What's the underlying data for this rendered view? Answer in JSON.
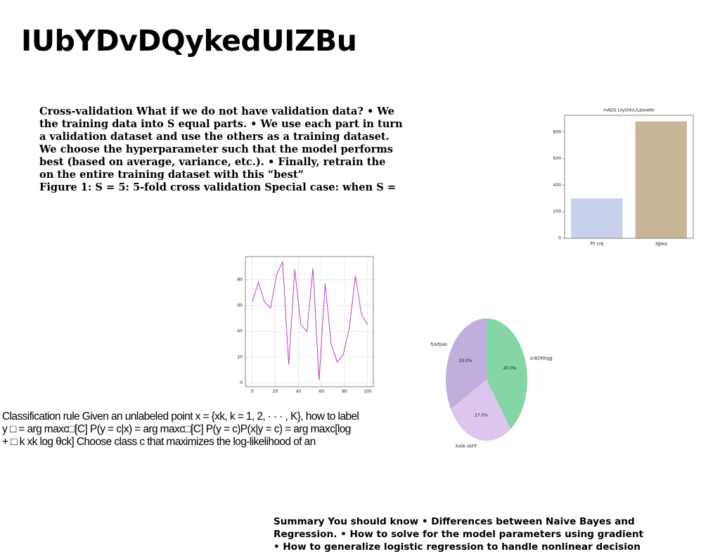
{
  "title": "IUbYDvDQykedUIZBu",
  "paragraphs": [
    {
      "lines": [
        "Cross-validation What if we do not have validation data? • We",
        "the training data into S equal parts. • We use each part in turn",
        "a validation dataset and use the others as a training dataset.",
        "We choose the hyperparameter such that the model performs",
        "best (based on average, variance, etc.). • Finally, retrain the",
        "on the entire training dataset with this “best”",
        "Figure 1: S = 5: 5-fold cross validation Special case: when S ="
      ]
    },
    {
      "lines": [
        "Classification rule Given an unlabeled point x = {xk, k = 1, 2, · · · , K}, how to label",
        "y □ = arg maxc□[C] P(y = c|x) = arg maxc□[C] P(y = c)P(x|y = c) = arg maxc[log",
        "+ □ k xk log θck] Choose class c that maximizes the log-likelihood of an"
      ]
    },
    {
      "lines": [
        "Summary You should know • Differences between Naive Bayes and",
        "Regression. • How to solve for the model parameters using gradient",
        "• How to generalize logistic regression to handle nonlinear decision"
      ]
    }
  ],
  "chart_data": [
    {
      "type": "bar",
      "title": "mADS LoyOdvLlLptxwNr",
      "categories": [
        "PS LHJ",
        "bJJwq"
      ],
      "values": [
        300,
        880
      ],
      "colors": [
        "#c8d1ec",
        "#c9b696"
      ],
      "ylim": [
        0,
        926
      ],
      "yticks": [
        0,
        200,
        400,
        600,
        800
      ]
    },
    {
      "type": "line",
      "x": [
        0,
        5.3,
        10.5,
        15.8,
        21.1,
        26.3,
        31.6,
        36.8,
        42.1,
        47.4,
        52.6,
        57.9,
        63.2,
        68.4,
        73.7,
        78.9,
        84.2,
        89.5,
        94.7,
        100
      ],
      "values": [
        63,
        78,
        63,
        58,
        84,
        94,
        14,
        88,
        45,
        40,
        89,
        2,
        77,
        30,
        16,
        22,
        43,
        83,
        53,
        45
      ],
      "color": "#c43cc4",
      "xlim": [
        -6,
        105
      ],
      "ylim": [
        -3,
        98
      ],
      "xticks": [
        0,
        20,
        40,
        60,
        80,
        100
      ],
      "yticks": [
        0,
        20,
        40,
        60,
        80
      ],
      "grid": true
    },
    {
      "type": "pie",
      "categories": [
        "zcBZKKqgJ",
        "Xxbk skFP",
        "fUVfpVo"
      ],
      "values": [
        40,
        27,
        33
      ],
      "value_labels": [
        "40.0%",
        "27.0%",
        "33.0%"
      ],
      "colors": [
        "#84d6a4",
        "#dcc6ee",
        "#c0aedc"
      ]
    }
  ]
}
